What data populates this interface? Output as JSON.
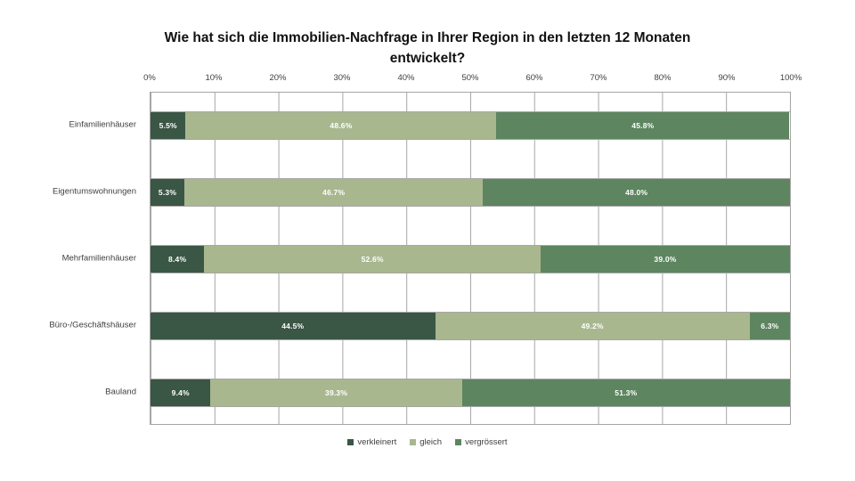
{
  "title": {
    "line1": "Wie hat sich die Immobilien-Nachfrage in Ihrer Region in den letzten 12 Monaten",
    "line2": "entwickelt?"
  },
  "chart_data": {
    "type": "bar",
    "orientation": "horizontal",
    "stacked": true,
    "title": "Wie hat sich die Immobilien-Nachfrage in Ihrer Region in den letzten 12 Monaten entwickelt?",
    "categories": [
      "Einfamilienhäuser",
      "Eigentumswohnungen",
      "Mehrfamilienhäuser",
      "Büro-/Geschäftshäuser",
      "Bauland"
    ],
    "series": [
      {
        "name": "verkleinert",
        "color": "#3a5645",
        "values": [
          5.5,
          5.3,
          8.4,
          44.5,
          9.4
        ]
      },
      {
        "name": "gleich",
        "color": "#a9b78f",
        "values": [
          48.6,
          46.7,
          52.6,
          49.2,
          39.3
        ]
      },
      {
        "name": "vergrössert",
        "color": "#5d855f",
        "values": [
          45.8,
          48.0,
          39.0,
          6.3,
          51.3
        ]
      }
    ],
    "x_ticks": [
      "0%",
      "10%",
      "20%",
      "30%",
      "40%",
      "50%",
      "60%",
      "70%",
      "80%",
      "90%",
      "100%"
    ],
    "xlim": [
      0,
      100
    ],
    "value_suffix": "%",
    "grid": true,
    "grid_color": "#a6a6a6",
    "legend_position": "bottom"
  }
}
